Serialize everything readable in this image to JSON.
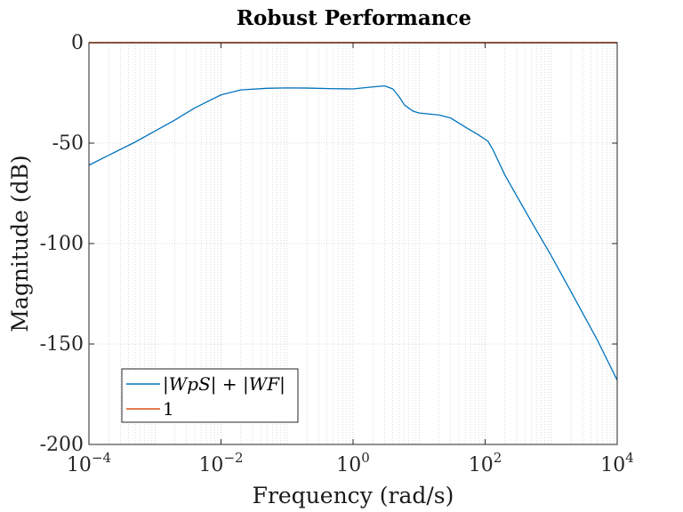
{
  "chart_data": {
    "type": "line",
    "title": "Robust Performance",
    "xlabel": "Frequency (rad/s)",
    "ylabel": "Magnitude (dB)",
    "x_scale": "log",
    "xlim": [
      0.0001,
      10000
    ],
    "ylim": [
      -200,
      0
    ],
    "x_ticks": [
      {
        "base": "10",
        "exp": "−4",
        "value": 0.0001
      },
      {
        "base": "10",
        "exp": "−2",
        "value": 0.01
      },
      {
        "base": "10",
        "exp": "0",
        "value": 1
      },
      {
        "base": "10",
        "exp": "2",
        "value": 100
      },
      {
        "base": "10",
        "exp": "4",
        "value": 10000
      }
    ],
    "y_ticks": [
      0,
      -50,
      -100,
      -150,
      -200
    ],
    "y_tick_labels": [
      "0",
      "-50",
      "-100",
      "-150",
      "-200"
    ],
    "grid": true,
    "minor_grid": true,
    "legend_position": "bottom-left",
    "series": [
      {
        "name": "|WpS| + |WF|",
        "color": "#0072bd",
        "points": [
          [
            0.0001,
            -61
          ],
          [
            0.0002,
            -56
          ],
          [
            0.0005,
            -49.5
          ],
          [
            0.001,
            -44
          ],
          [
            0.002,
            -38.5
          ],
          [
            0.004,
            -32.5
          ],
          [
            0.007,
            -28.5
          ],
          [
            0.01,
            -26
          ],
          [
            0.02,
            -23.5
          ],
          [
            0.05,
            -22.7
          ],
          [
            0.1,
            -22.5
          ],
          [
            0.2,
            -22.6
          ],
          [
            0.5,
            -22.9
          ],
          [
            1,
            -23
          ],
          [
            2,
            -22
          ],
          [
            3,
            -21.5
          ],
          [
            4,
            -23
          ],
          [
            5,
            -27
          ],
          [
            6,
            -31
          ],
          [
            8,
            -34
          ],
          [
            10,
            -35
          ],
          [
            20,
            -36
          ],
          [
            30,
            -37.5
          ],
          [
            50,
            -42
          ],
          [
            80,
            -46
          ],
          [
            110,
            -49
          ],
          [
            130,
            -53
          ],
          [
            200,
            -66
          ],
          [
            500,
            -89
          ],
          [
            1000,
            -106
          ],
          [
            2000,
            -124
          ],
          [
            5000,
            -148
          ],
          [
            10000,
            -168
          ]
        ]
      },
      {
        "name": "1",
        "color": "#d95319",
        "points": [
          [
            0.0001,
            0
          ],
          [
            10000,
            0
          ]
        ]
      }
    ]
  }
}
